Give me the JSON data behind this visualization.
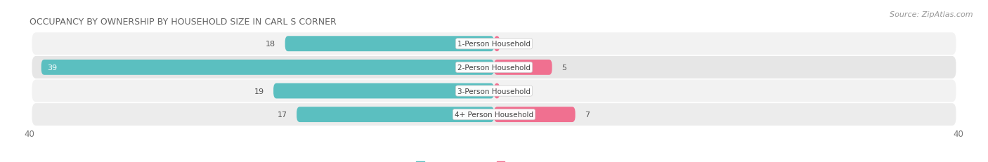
{
  "title": "OCCUPANCY BY OWNERSHIP BY HOUSEHOLD SIZE IN CARL S CORNER",
  "source": "Source: ZipAtlas.com",
  "categories": [
    "1-Person Household",
    "2-Person Household",
    "3-Person Household",
    "4+ Person Household"
  ],
  "owner_values": [
    18,
    39,
    19,
    17
  ],
  "renter_values": [
    0,
    5,
    0,
    7
  ],
  "owner_color": "#5BBFC0",
  "renter_color": "#F07090",
  "owner_color_dark": "#2E9EA0",
  "renter_color_dark": "#E04070",
  "axis_max": 40,
  "title_fontsize": 9,
  "source_fontsize": 8,
  "tick_fontsize": 8.5,
  "legend_fontsize": 8,
  "value_fontsize": 8,
  "category_fontsize": 7.5,
  "figsize": [
    14.06,
    2.32
  ],
  "dpi": 100,
  "bg_color": "#FFFFFF",
  "row_colors": [
    "#F0F0F0",
    "#E4E4E4",
    "#F0F0F0",
    "#EBEBEB"
  ],
  "row_colors_alt": [
    "#EEEEEE",
    "#DDDDDD",
    "#EEEEEE",
    "#E8E8E8"
  ]
}
